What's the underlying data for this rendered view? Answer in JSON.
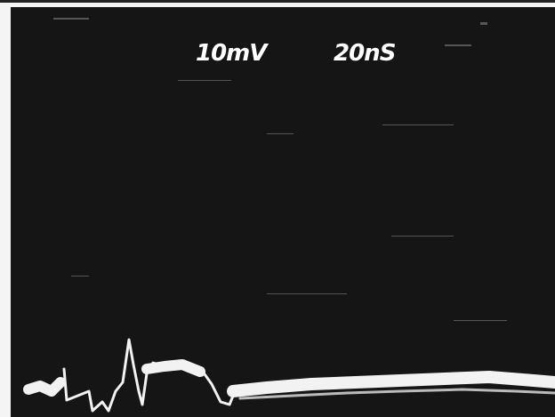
{
  "display": {
    "volts_per_div": "10mV",
    "time_per_div": "20nS"
  }
}
